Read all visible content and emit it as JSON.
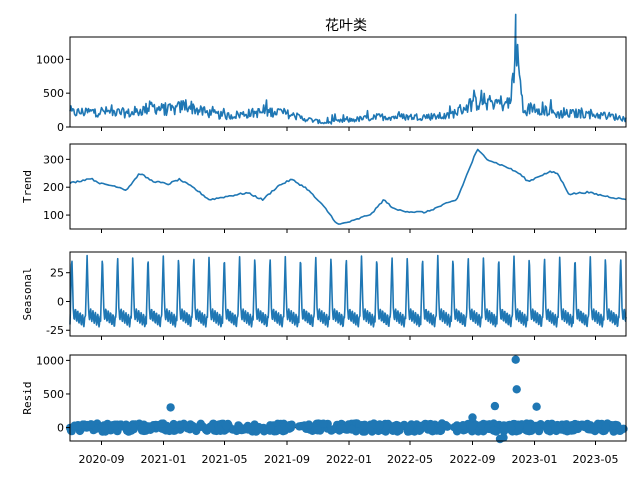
{
  "chart_data": [
    {
      "type": "line",
      "panel": "observed",
      "title": "花叶类",
      "ylabel": "",
      "ylim": [
        0,
        1330
      ],
      "yticks": [
        0,
        500,
        1000
      ],
      "color": "#1f77b4",
      "series": [
        {
          "x": [
            "2020-07-01",
            "2020-09-01",
            "2020-11-01",
            "2020-12-10",
            "2021-01-01",
            "2021-01-20",
            "2021-02-15",
            "2021-03-15",
            "2021-05-01",
            "2021-07-01",
            "2021-08-15",
            "2021-10-01",
            "2021-11-15",
            "2022-01-01",
            "2022-03-01",
            "2022-05-01",
            "2022-07-15",
            "2022-09-01",
            "2022-09-20",
            "2022-10-20",
            "2022-11-15",
            "2022-11-25",
            "2022-12-10",
            "2023-01-01",
            "2023-02-15",
            "2023-04-01",
            "2023-06-01",
            "2023-06-30"
          ],
          "values": [
            210,
            230,
            200,
            300,
            260,
            250,
            330,
            230,
            160,
            210,
            230,
            130,
            60,
            100,
            150,
            150,
            160,
            350,
            380,
            360,
            340,
            1270,
            230,
            300,
            190,
            200,
            160,
            120
          ]
        }
      ]
    },
    {
      "type": "line",
      "panel": "trend",
      "ylabel": "Trend",
      "ylim": [
        50,
        355
      ],
      "yticks": [
        100,
        200,
        300
      ],
      "color": "#1f77b4",
      "series": [
        {
          "x": [
            "2020-07-01",
            "2020-07-20",
            "2020-08-10",
            "2020-09-01",
            "2020-10-01",
            "2020-10-20",
            "2020-11-15",
            "2020-12-10",
            "2021-01-10",
            "2021-02-01",
            "2021-03-01",
            "2021-04-01",
            "2021-05-15",
            "2021-06-15",
            "2021-07-15",
            "2021-08-15",
            "2021-09-10",
            "2021-10-10",
            "2021-11-15",
            "2021-12-10",
            "2022-01-10",
            "2022-02-15",
            "2022-03-10",
            "2022-04-01",
            "2022-05-01",
            "2022-06-01",
            "2022-07-10",
            "2022-08-01",
            "2022-09-10",
            "2022-10-01",
            "2022-10-20",
            "2022-11-10",
            "2022-12-01",
            "2022-12-20",
            "2023-01-10",
            "2023-02-01",
            "2023-02-15",
            "2023-03-10",
            "2023-04-15",
            "2023-05-15",
            "2023-06-20"
          ],
          "values": [
            215,
            222,
            232,
            212,
            203,
            190,
            250,
            222,
            211,
            228,
            198,
            155,
            170,
            180,
            155,
            205,
            228,
            195,
            125,
            65,
            80,
            105,
            155,
            120,
            112,
            110,
            140,
            155,
            335,
            300,
            285,
            270,
            250,
            220,
            240,
            255,
            250,
            175,
            182,
            170,
            158
          ]
        }
      ]
    },
    {
      "type": "line",
      "panel": "seasonal",
      "ylabel": "Seasonal",
      "ylim": [
        -30,
        43
      ],
      "yticks": [
        -25,
        0,
        25
      ],
      "color": "#1f77b4",
      "series": [
        {
          "description_period_days": 30,
          "min": -26,
          "max": 40
        }
      ]
    },
    {
      "type": "scatter",
      "panel": "resid",
      "ylabel": "Resid",
      "ylim": [
        -200,
        1080
      ],
      "yticks": [
        0,
        500,
        1000
      ],
      "color": "#1f77b4",
      "xlim": [
        "2020-07-01",
        "2023-06-30"
      ],
      "xticks": [
        "2020-09",
        "2021-01",
        "2021-05",
        "2021-09",
        "2022-01",
        "2022-05",
        "2022-09",
        "2023-01",
        "2023-05"
      ],
      "series": [
        {
          "x": [
            "2021-01-15",
            "2022-09-01",
            "2022-10-15",
            "2022-11-25",
            "2022-11-27",
            "2023-01-05",
            "2022-11-01",
            "2022-10-25"
          ],
          "values": [
            300,
            150,
            320,
            1010,
            570,
            310,
            -150,
            -170
          ]
        }
      ]
    }
  ]
}
